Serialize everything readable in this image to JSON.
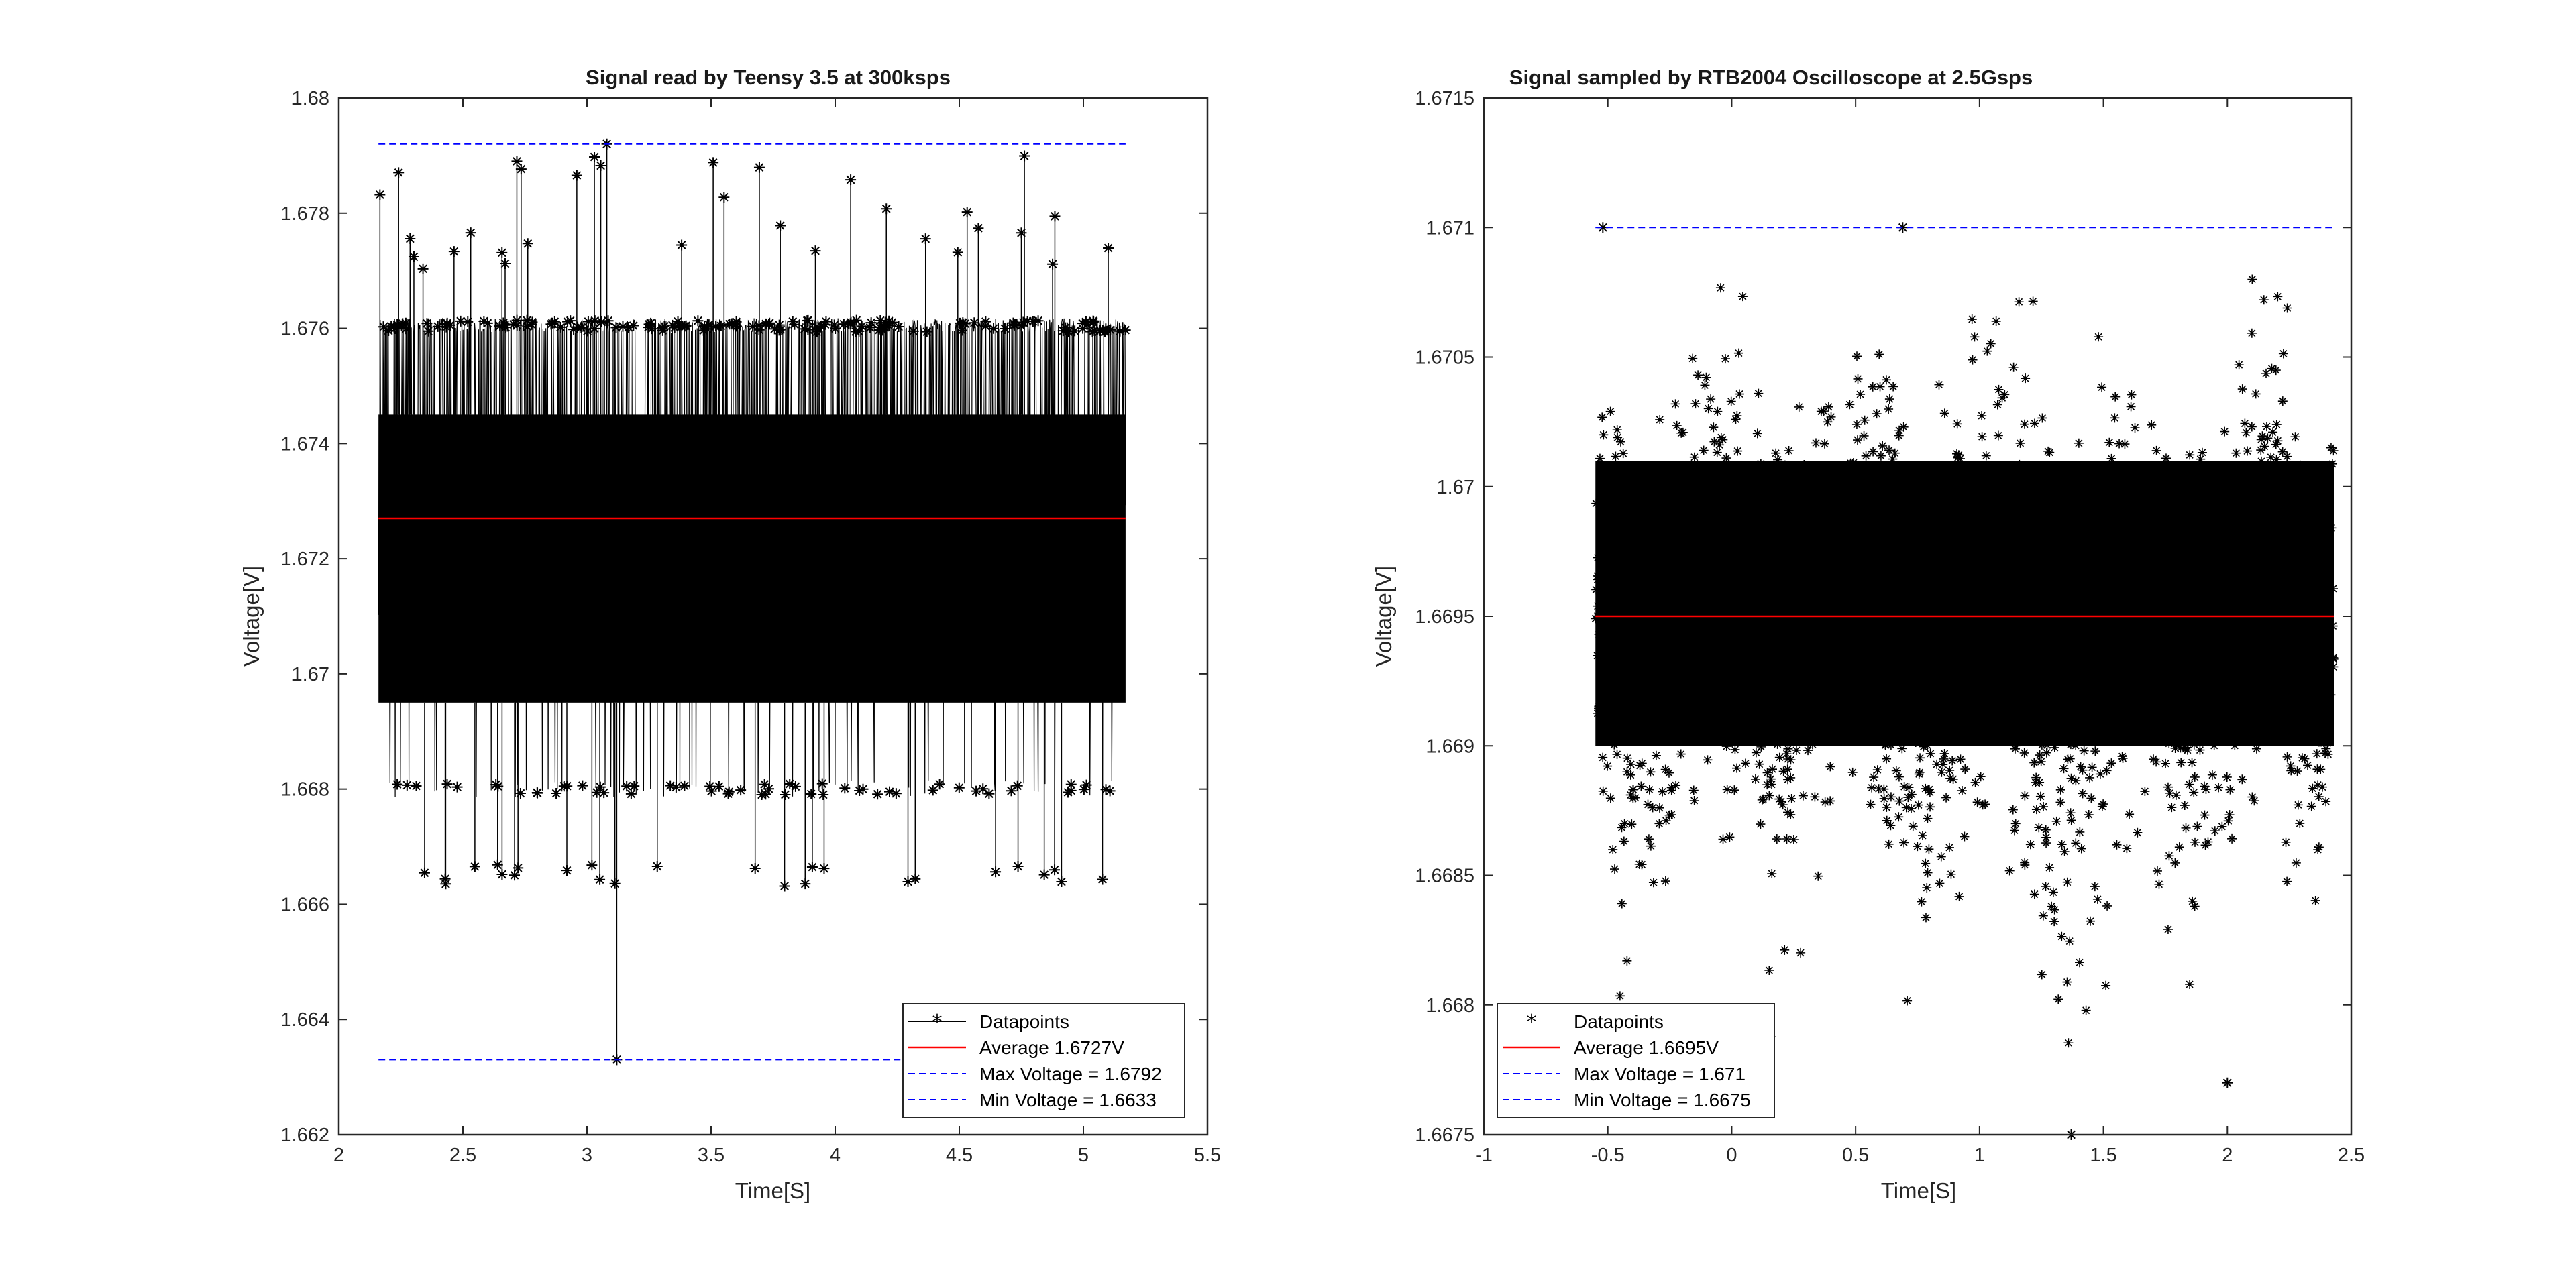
{
  "chart_data": [
    {
      "type": "line",
      "title": "Signal read by Teensy 3.5 at 300ksps",
      "xlabel": "Time[S]",
      "ylabel": "Voltage[V]",
      "xlim": [
        2,
        5.5
      ],
      "ylim": [
        1.662,
        1.68
      ],
      "xticks": [
        "2",
        "2.5",
        "3",
        "3.5",
        "4",
        "4.5",
        "5",
        "5.5"
      ],
      "xtick_values": [
        2,
        2.5,
        3,
        3.5,
        4,
        4.5,
        5,
        5.5
      ],
      "yticks": [
        "1.662",
        "1.664",
        "1.666",
        "1.668",
        "1.67",
        "1.672",
        "1.674",
        "1.676",
        "1.678",
        "1.68"
      ],
      "ytick_values": [
        1.662,
        1.664,
        1.666,
        1.668,
        1.67,
        1.672,
        1.674,
        1.676,
        1.678,
        1.68
      ],
      "data_x_range": [
        2.16,
        5.17
      ],
      "data_band": [
        1.6695,
        1.6745
      ],
      "spike_levels_upper": [
        1.676,
        1.678
      ],
      "spike_levels_lower": [
        1.668,
        1.6665
      ],
      "outliers": [
        {
          "x": 3.08,
          "y": 1.6792
        },
        {
          "x": 3.12,
          "y": 1.6633
        }
      ],
      "series": [
        {
          "name": "Datapoints",
          "style": "black-line-asterisk",
          "color": "#000000"
        },
        {
          "name": "Average 1.6727V",
          "style": "solid",
          "color": "#ff0000",
          "value": 1.6727
        },
        {
          "name": "Max Voltage = 1.6792",
          "style": "dashed",
          "color": "#0000ff",
          "value": 1.6792
        },
        {
          "name": "Min Voltage = 1.6633",
          "style": "dashed",
          "color": "#0000ff",
          "value": 1.6633
        }
      ],
      "legend_position": "bottom-right",
      "grid": false
    },
    {
      "type": "scatter",
      "title": "Signal sampled by RTB2004 Oscilloscope at 2.5Gsps",
      "xlabel": "Time[S]",
      "ylabel": "Voltage[V]",
      "xlim": [
        -1,
        2.5
      ],
      "ylim": [
        1.6675,
        1.6715
      ],
      "xticks": [
        "-1",
        "-0.5",
        "0",
        "0.5",
        "1",
        "1.5",
        "2",
        "2.5"
      ],
      "xtick_values": [
        -1,
        -0.5,
        0,
        0.5,
        1,
        1.5,
        2,
        2.5
      ],
      "yticks": [
        "1.6675",
        "1.668",
        "1.6685",
        "1.669",
        "1.6695",
        "1.67",
        "1.6705",
        "1.671",
        "1.6715"
      ],
      "ytick_values": [
        1.6675,
        1.668,
        1.6685,
        1.669,
        1.6695,
        1.67,
        1.6705,
        1.671,
        1.6715
      ],
      "data_x_range": [
        -0.55,
        2.43
      ],
      "data_center": 1.6695,
      "outliers": [
        {
          "x": -0.52,
          "y": 1.671
        },
        {
          "x": 0.69,
          "y": 1.671
        },
        {
          "x": 1.37,
          "y": 1.6675
        },
        {
          "x": 2.0,
          "y": 1.6677
        }
      ],
      "series": [
        {
          "name": "Datapoints",
          "style": "black-asterisk",
          "color": "#000000"
        },
        {
          "name": "Average 1.6695V",
          "style": "solid",
          "color": "#ff0000",
          "value": 1.6695
        },
        {
          "name": "Max Voltage = 1.671",
          "style": "dashed",
          "color": "#0000ff",
          "value": 1.671
        },
        {
          "name": "Min Voltage = 1.6675",
          "style": "dashed",
          "color": "#0000ff",
          "value": 1.6675
        }
      ],
      "legend_position": "bottom-left",
      "grid": false
    }
  ]
}
